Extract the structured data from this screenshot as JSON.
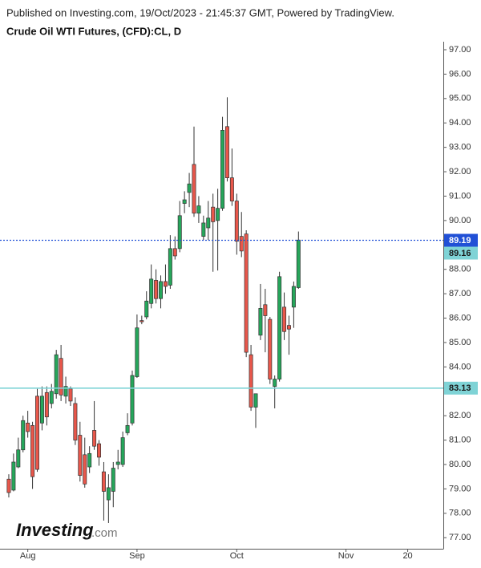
{
  "chart_data": {
    "type": "candlestick",
    "subtitle": "Published on Investing.com, 19/Oct/2023 - 21:45:37 GMT, Powered by TradingView.",
    "title": "Crude Oil WTI Futures, (CFD):CL, D",
    "categories": [
      null,
      null,
      null,
      null,
      "Aug",
      null,
      null,
      null,
      null,
      null,
      null,
      null,
      null,
      null,
      null,
      null,
      null,
      null,
      null,
      null,
      null,
      null,
      null,
      null,
      null,
      null,
      null,
      "Sep",
      null,
      null,
      null,
      null,
      null,
      null,
      null,
      null,
      null,
      null,
      null,
      null,
      null,
      null,
      null,
      null,
      null,
      null,
      null,
      null,
      "Oct",
      null,
      null,
      null,
      null,
      null,
      null,
      null,
      null,
      null,
      null,
      null,
      null,
      null,
      null,
      null,
      null,
      null,
      null,
      null,
      null,
      null,
      null,
      "Nov",
      null,
      null,
      null,
      null,
      null,
      null,
      null,
      null,
      null,
      null,
      null,
      null,
      "20",
      null,
      null,
      null,
      null,
      null,
      null,
      null
    ],
    "open": [
      79.4,
      78.95,
      79.9,
      80.6,
      81.7,
      81.6,
      82.8,
      81.7,
      82.95,
      82.5,
      82.9,
      84.35,
      82.8,
      83.1,
      82.5,
      81.2,
      80.4,
      79.9,
      81.4,
      80.85,
      79.7,
      78.55,
      78.9,
      80.0,
      80.0,
      81.3,
      81.7,
      83.6,
      85.9,
      86.05,
      86.6,
      87.55,
      86.8,
      87.5,
      87.35,
      88.85,
      88.85,
      90.7,
      91.15,
      92.3,
      90.3,
      89.35,
      89.7,
      90.55,
      90.0,
      90.5,
      93.85,
      91.75,
      90.8,
      89.35,
      89.45,
      84.5,
      82.35,
      85.3,
      86.55,
      85.95,
      83.2,
      83.5,
      86.45,
      85.7,
      86.45,
      87.25,
      null,
      null,
      null,
      null,
      null,
      null,
      null,
      null,
      null,
      null,
      null,
      null,
      null,
      null,
      null,
      null,
      null,
      null,
      null,
      null,
      null,
      null,
      null,
      null,
      null,
      null,
      null,
      null,
      null,
      null
    ],
    "high": [
      79.6,
      80.45,
      81.1,
      82.0,
      82.2,
      81.75,
      83.1,
      83.2,
      83.2,
      83.3,
      84.7,
      84.9,
      83.6,
      83.2,
      82.75,
      81.75,
      81.1,
      80.75,
      82.6,
      81.0,
      80.1,
      79.6,
      80.1,
      80.6,
      81.35,
      82.1,
      83.85,
      86.15,
      86.1,
      87.1,
      88.2,
      88.0,
      87.75,
      88.2,
      89.4,
      89.35,
      90.8,
      91.2,
      91.95,
      93.85,
      91.0,
      90.2,
      90.8,
      91.1,
      91.3,
      94.25,
      95.05,
      92.95,
      91.1,
      90.35,
      89.6,
      84.9,
      82.9,
      87.4,
      87.2,
      86.05,
      83.65,
      87.9,
      87.05,
      86.1,
      87.5,
      89.55,
      null,
      null,
      null,
      null,
      null,
      null,
      null,
      null,
      null,
      null,
      null,
      null,
      null,
      null,
      null,
      null,
      null,
      null,
      null,
      null,
      null,
      null,
      null,
      null,
      null,
      null,
      null,
      null,
      null,
      null
    ],
    "low": [
      78.65,
      78.9,
      79.85,
      80.5,
      81.1,
      79.0,
      79.7,
      81.4,
      81.6,
      82.3,
      82.7,
      82.6,
      82.5,
      82.4,
      80.8,
      79.3,
      79.05,
      79.65,
      80.6,
      79.95,
      77.7,
      77.6,
      78.25,
      79.8,
      79.9,
      81.2,
      81.6,
      83.55,
      85.75,
      85.95,
      86.4,
      86.6,
      86.4,
      87.0,
      87.2,
      88.4,
      88.7,
      90.3,
      90.55,
      90.15,
      89.9,
      89.2,
      89.2,
      87.9,
      87.95,
      90.4,
      91.6,
      90.6,
      88.6,
      88.5,
      84.4,
      82.2,
      81.5,
      85.1,
      84.6,
      83.3,
      82.3,
      83.4,
      85.1,
      84.5,
      85.6,
      87.2,
      null,
      null,
      null,
      null,
      null,
      null,
      null,
      null,
      null,
      null,
      null,
      null,
      null,
      null,
      null,
      null,
      null,
      null,
      null,
      null,
      null,
      null,
      null,
      null,
      null,
      null,
      null,
      null,
      null,
      null
    ],
    "close": [
      78.85,
      80.1,
      80.6,
      81.8,
      81.35,
      79.5,
      79.8,
      82.8,
      81.95,
      83.0,
      84.5,
      82.85,
      83.2,
      82.6,
      81.0,
      79.55,
      79.2,
      80.45,
      80.75,
      80.3,
      78.9,
      79.05,
      79.85,
      80.1,
      81.1,
      81.6,
      83.65,
      85.6,
      85.85,
      86.7,
      87.6,
      86.8,
      87.5,
      87.3,
      88.85,
      88.55,
      90.2,
      90.85,
      91.5,
      90.3,
      90.6,
      89.9,
      90.1,
      89.95,
      90.5,
      93.7,
      91.75,
      90.8,
      89.15,
      88.75,
      84.6,
      82.35,
      82.9,
      86.4,
      86.1,
      83.5,
      83.5,
      87.7,
      85.45,
      85.55,
      87.3,
      89.2,
      null,
      null,
      null,
      null,
      null,
      null,
      null,
      null,
      null,
      null,
      null,
      null,
      null,
      null,
      null,
      null,
      null,
      null,
      null,
      null,
      null,
      null,
      null,
      null,
      null,
      null,
      null,
      null,
      null,
      null
    ],
    "up_color": "#26a65b",
    "down_color": "#e8574b",
    "ylim": [
      76.58,
      97.23
    ],
    "yticks": [
      {
        "value": 77,
        "label": "77.00"
      },
      {
        "value": 78,
        "label": "78.00"
      },
      {
        "value": 79,
        "label": "79.00"
      },
      {
        "value": 80,
        "label": "80.00"
      },
      {
        "value": 81,
        "label": "81.00"
      },
      {
        "value": 82,
        "label": "82.00"
      },
      {
        "value": 83,
        "label": "83.00"
      },
      {
        "value": 84,
        "label": "84.00"
      },
      {
        "value": 85,
        "label": "85.00"
      },
      {
        "value": 86,
        "label": "86.00"
      },
      {
        "value": 87,
        "label": "87.00"
      },
      {
        "value": 88,
        "label": "88.00"
      },
      {
        "value": 89,
        "label": "89.00"
      },
      {
        "value": 90,
        "label": "90.00"
      },
      {
        "value": 91,
        "label": "91.00"
      },
      {
        "value": 92,
        "label": "92.00"
      },
      {
        "value": 93,
        "label": "93.00"
      },
      {
        "value": 94,
        "label": "94.00"
      },
      {
        "value": 95,
        "label": "95.00"
      },
      {
        "value": 96,
        "label": "96.00"
      },
      {
        "value": 97,
        "label": "97.00"
      }
    ],
    "price_lines": [
      {
        "value": 89.19,
        "label": "89.19",
        "color": "#2150d6",
        "style": "dotted"
      },
      {
        "value": 89.16,
        "label": "89.16",
        "color": "#7fd3d6",
        "style": "none"
      },
      {
        "value": 83.13,
        "label": "83.13",
        "color": "#7fd3d6",
        "style": "solid"
      }
    ],
    "grid": false
  },
  "logo": {
    "name": "Investing",
    "suffix": ".com"
  }
}
